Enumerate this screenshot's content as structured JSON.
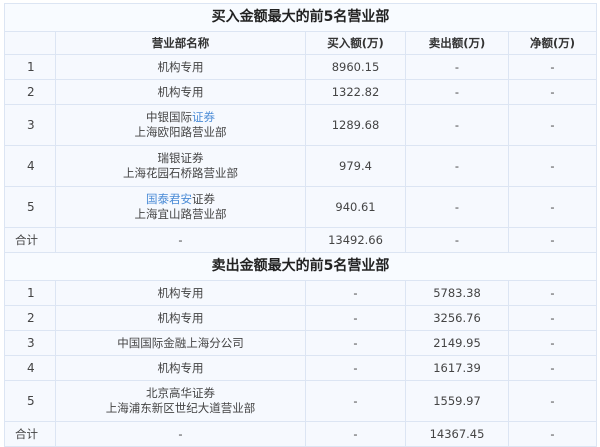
{
  "colors": {
    "link": "#4a8bd6",
    "border": "#dce5f3",
    "background": "#f6f9fe"
  },
  "headers": [
    "营业部名称",
    "买入额(万)",
    "卖出额(万)",
    "净额(万)"
  ],
  "sections": [
    {
      "title": "买入金额最大的前5名营业部",
      "rows": [
        {
          "rank": "1",
          "name": [
            [
              {
                "text": "机构专用",
                "link": false
              }
            ]
          ],
          "buy": "8960.15",
          "sell": "-",
          "net": "-"
        },
        {
          "rank": "2",
          "name": [
            [
              {
                "text": "机构专用",
                "link": false
              }
            ]
          ],
          "buy": "1322.82",
          "sell": "-",
          "net": "-"
        },
        {
          "rank": "3",
          "name": [
            [
              {
                "text": "中银国际",
                "link": false
              },
              {
                "text": "证券",
                "link": true
              }
            ],
            [
              {
                "text": "上海欧阳路营业部",
                "link": false
              }
            ]
          ],
          "buy": "1289.68",
          "sell": "-",
          "net": "-"
        },
        {
          "rank": "4",
          "name": [
            [
              {
                "text": "瑞银证券",
                "link": false
              }
            ],
            [
              {
                "text": "上海花园石桥路营业部",
                "link": false
              }
            ]
          ],
          "buy": "979.4",
          "sell": "-",
          "net": "-"
        },
        {
          "rank": "5",
          "name": [
            [
              {
                "text": "国泰君安",
                "link": true
              },
              {
                "text": "证券",
                "link": false
              }
            ],
            [
              {
                "text": "上海宜山路营业部",
                "link": false
              }
            ]
          ],
          "buy": "940.61",
          "sell": "-",
          "net": "-"
        }
      ],
      "total": {
        "label": "合计",
        "name": "-",
        "buy": "13492.66",
        "sell": "-",
        "net": "-"
      }
    },
    {
      "title": "卖出金额最大的前5名营业部",
      "rows": [
        {
          "rank": "1",
          "name": [
            [
              {
                "text": "机构专用",
                "link": false
              }
            ]
          ],
          "buy": "-",
          "sell": "5783.38",
          "net": "-"
        },
        {
          "rank": "2",
          "name": [
            [
              {
                "text": "机构专用",
                "link": false
              }
            ]
          ],
          "buy": "-",
          "sell": "3256.76",
          "net": "-"
        },
        {
          "rank": "3",
          "name": [
            [
              {
                "text": "中国国际金融上海分公司",
                "link": false
              }
            ]
          ],
          "buy": "-",
          "sell": "2149.95",
          "net": "-"
        },
        {
          "rank": "4",
          "name": [
            [
              {
                "text": "机构专用",
                "link": false
              }
            ]
          ],
          "buy": "-",
          "sell": "1617.39",
          "net": "-"
        },
        {
          "rank": "5",
          "name": [
            [
              {
                "text": "北京高华证券",
                "link": false
              }
            ],
            [
              {
                "text": "上海浦东新区世纪大道营业部",
                "link": false
              }
            ]
          ],
          "buy": "-",
          "sell": "1559.97",
          "net": "-"
        }
      ],
      "total": {
        "label": "合计",
        "name": "-",
        "buy": "-",
        "sell": "14367.45",
        "net": "-"
      }
    }
  ]
}
